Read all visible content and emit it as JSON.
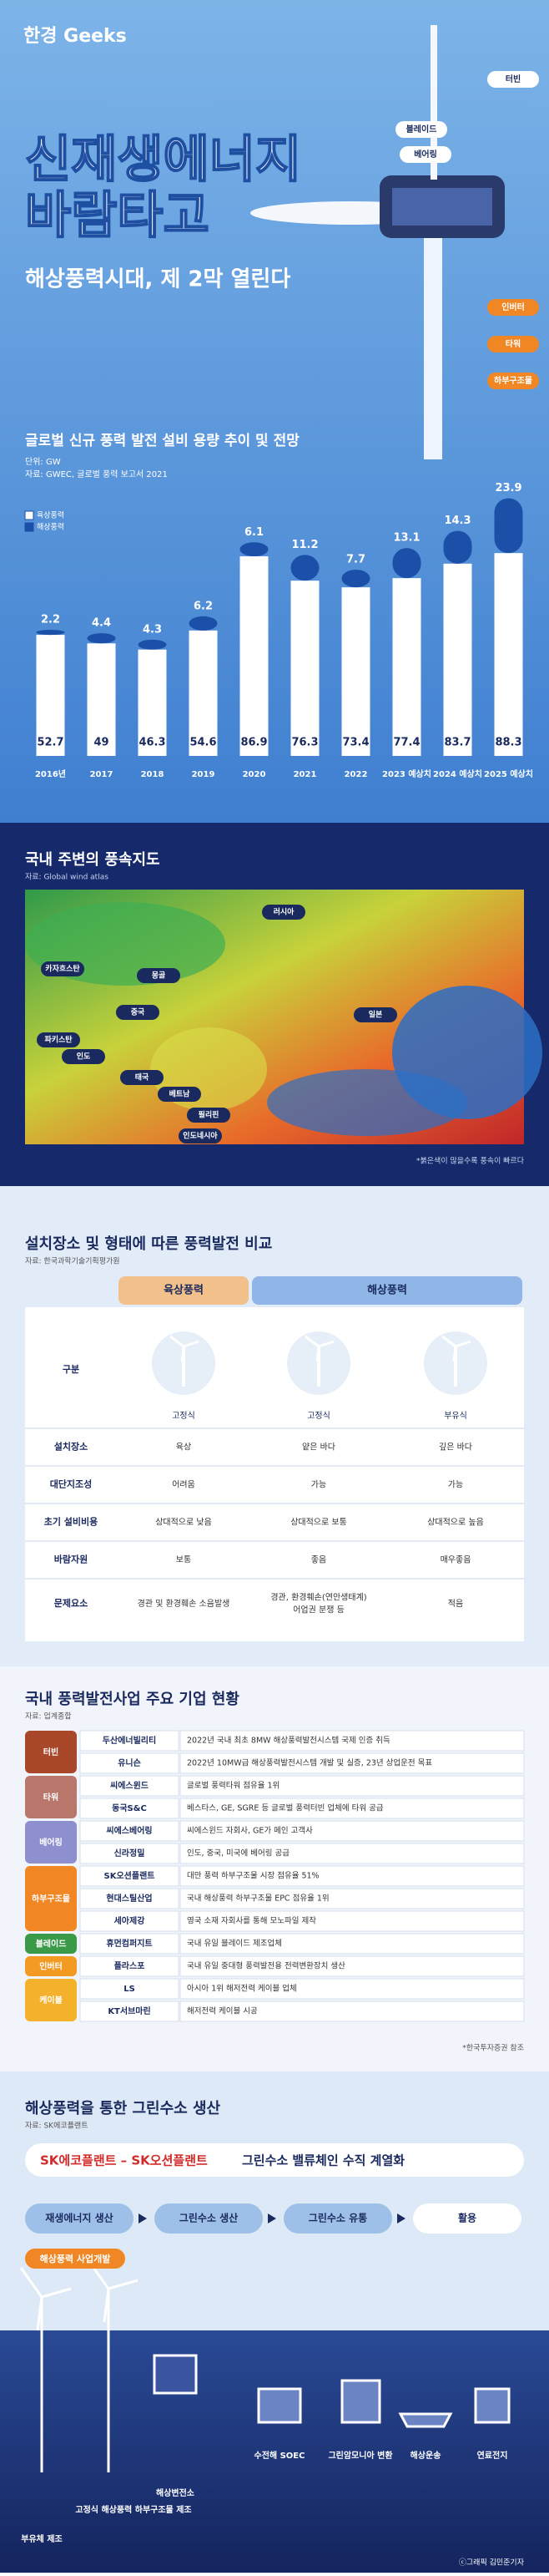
{
  "header": {
    "logo": "한경 Geeks",
    "title_lines": [
      "신재생에너지",
      "바람타고"
    ],
    "subtitle": "해상풍력시대, 제 2막 열린다",
    "parts": [
      "터빈",
      "블레이드",
      "베어링",
      "인버터",
      "타워",
      "하부구조물"
    ]
  },
  "chart_data": {
    "type": "bar",
    "stacked": true,
    "title": "글로벌 신규 풍력 발전 설비 용량 추이 및 전망",
    "unit": "단위: GW",
    "source": "자료: GWEC, 글로벌 풍력 보고서 2021",
    "categories": [
      "2016년",
      "2017",
      "2018",
      "2019",
      "2020",
      "2021",
      "2022",
      "2023 예상치",
      "2024 예상치",
      "2025 예상치"
    ],
    "series": [
      {
        "name": "육상풍력",
        "color": "#ffffff",
        "values": [
          52.7,
          49,
          46.3,
          54.6,
          86.9,
          76.3,
          73.4,
          77.4,
          83.7,
          88.3
        ]
      },
      {
        "name": "해상풍력",
        "color": "#1b4fa8",
        "values": [
          2.2,
          4.4,
          4.3,
          6.2,
          6.1,
          11.2,
          7.7,
          13.1,
          14.3,
          23.9
        ]
      }
    ],
    "ylim": [
      0,
      120
    ]
  },
  "wind_map": {
    "title": "국내 주변의 풍속지도",
    "source": "자료: Global wind atlas",
    "labels": [
      "러시아",
      "카자흐스탄",
      "몽골",
      "중국",
      "일본",
      "파키스탄",
      "인도",
      "태국",
      "베트남",
      "필리핀",
      "인도네시아"
    ],
    "note": "*붉은색이 많을수록 풍속이 빠르다"
  },
  "comparison": {
    "title": "설치장소 및 형태에 따른 풍력발전 비교",
    "source": "자료: 한국과학기술기획평가원",
    "headers": [
      "육상풍력",
      "해상풍력"
    ],
    "type_row": {
      "label": "구분",
      "cells": [
        "고정식",
        "고정식",
        "부유식"
      ]
    },
    "rows": [
      {
        "label": "설치장소",
        "cells": [
          "육상",
          "얕은 바다",
          "깊은 바다"
        ]
      },
      {
        "label": "대단지조성",
        "cells": [
          "어려움",
          "가능",
          "가능"
        ]
      },
      {
        "label": "초기 설비비용",
        "cells": [
          "상대적으로 낮음",
          "상대적으로 보통",
          "상대적으로 높음"
        ]
      },
      {
        "label": "바람자원",
        "cells": [
          "보통",
          "좋음",
          "매우좋음"
        ]
      },
      {
        "label": "문제요소",
        "cells": [
          "경관 및 환경훼손 소음발생",
          [
            "경관, 환경훼손(연안생태계)",
            "어업권 분쟁 등"
          ],
          "적음"
        ]
      }
    ]
  },
  "companies": {
    "title": "국내 풍력발전사업 주요 기업 현황",
    "source": "자료: 업계종합",
    "groups": [
      {
        "name": "터빈",
        "color": "#a8472a",
        "items": [
          {
            "company": "두산에너빌리티",
            "desc": "2022년 국내 최초 8MW 해상풍력발전시스템 국제 인증 취득"
          },
          {
            "company": "유니슨",
            "desc": "2022년 10MW급 해상풍력발전시스템 개발 및 실증, 23년 상업운전 목표"
          }
        ]
      },
      {
        "name": "타워",
        "color": "#b9766a",
        "items": [
          {
            "company": "씨에스윈드",
            "desc": "글로벌 풍력타워 점유율 1위"
          },
          {
            "company": "동국S&C",
            "desc": "베스타스, GE, SGRE 등 글로벌 풍력터빈 업체에 타워 공급"
          }
        ]
      },
      {
        "name": "베어링",
        "color": "#8e8fcf",
        "items": [
          {
            "company": "씨에스베어링",
            "desc": "씨에스윈드 자회사, GE가 메인 고객사"
          },
          {
            "company": "신라정밀",
            "desc": "인도, 중국, 미국에 베어링 공급"
          }
        ]
      },
      {
        "name": "하부구조물",
        "color": "#f08624",
        "items": [
          {
            "company": "SK오션플랜트",
            "desc": "대만 풍력 하부구조물 시장 점유율 51%"
          },
          {
            "company": "현대스틸산업",
            "desc": "국내 해상풍력 하부구조물 EPC 점유율 1위"
          },
          {
            "company": "세아제강",
            "desc": "영국 소재 자회사를 통해 모노파일 제작"
          }
        ]
      },
      {
        "name": "블레이드",
        "color": "#3a9a48",
        "items": [
          {
            "company": "휴먼컴퍼지트",
            "desc": "국내 유일 블레이드 제조업체"
          }
        ]
      },
      {
        "name": "인버터",
        "color": "#f39a22",
        "items": [
          {
            "company": "플라스포",
            "desc": "국내 유일 중대형 풍력발전용 전력변환장치 생산"
          }
        ]
      },
      {
        "name": "케이블",
        "color": "#f4b12b",
        "items": [
          {
            "company": "LS",
            "desc": "아시아 1위 해저전력 케이블 업체"
          },
          {
            "company": "KT서브마린",
            "desc": "해저전력 케이블 시공"
          }
        ]
      }
    ],
    "note": "*한국투자증권 참조"
  },
  "hydrogen": {
    "title": "해상풍력을 통한 그린수소 생산",
    "source": "자료: SK에코플랜트",
    "banner": {
      "highlight": "SK에코플랜트 – SK오션플랜트",
      "text": "그린수소 밸류체인 수직 계열화"
    },
    "flow": [
      "재생에너지 생산",
      "그린수소 생산",
      "그린수소 유통",
      "활용"
    ],
    "tag": "해상풍력 사업개발",
    "labels": [
      "부유체 제조",
      "고정식 해상풍력 하부구조물 제조",
      "해상변전소",
      "수전해 SOEC",
      "그린암모니아 변환",
      "해상운송",
      "연료전지"
    ],
    "credit": "ⓒ그래픽 김민준기자"
  }
}
